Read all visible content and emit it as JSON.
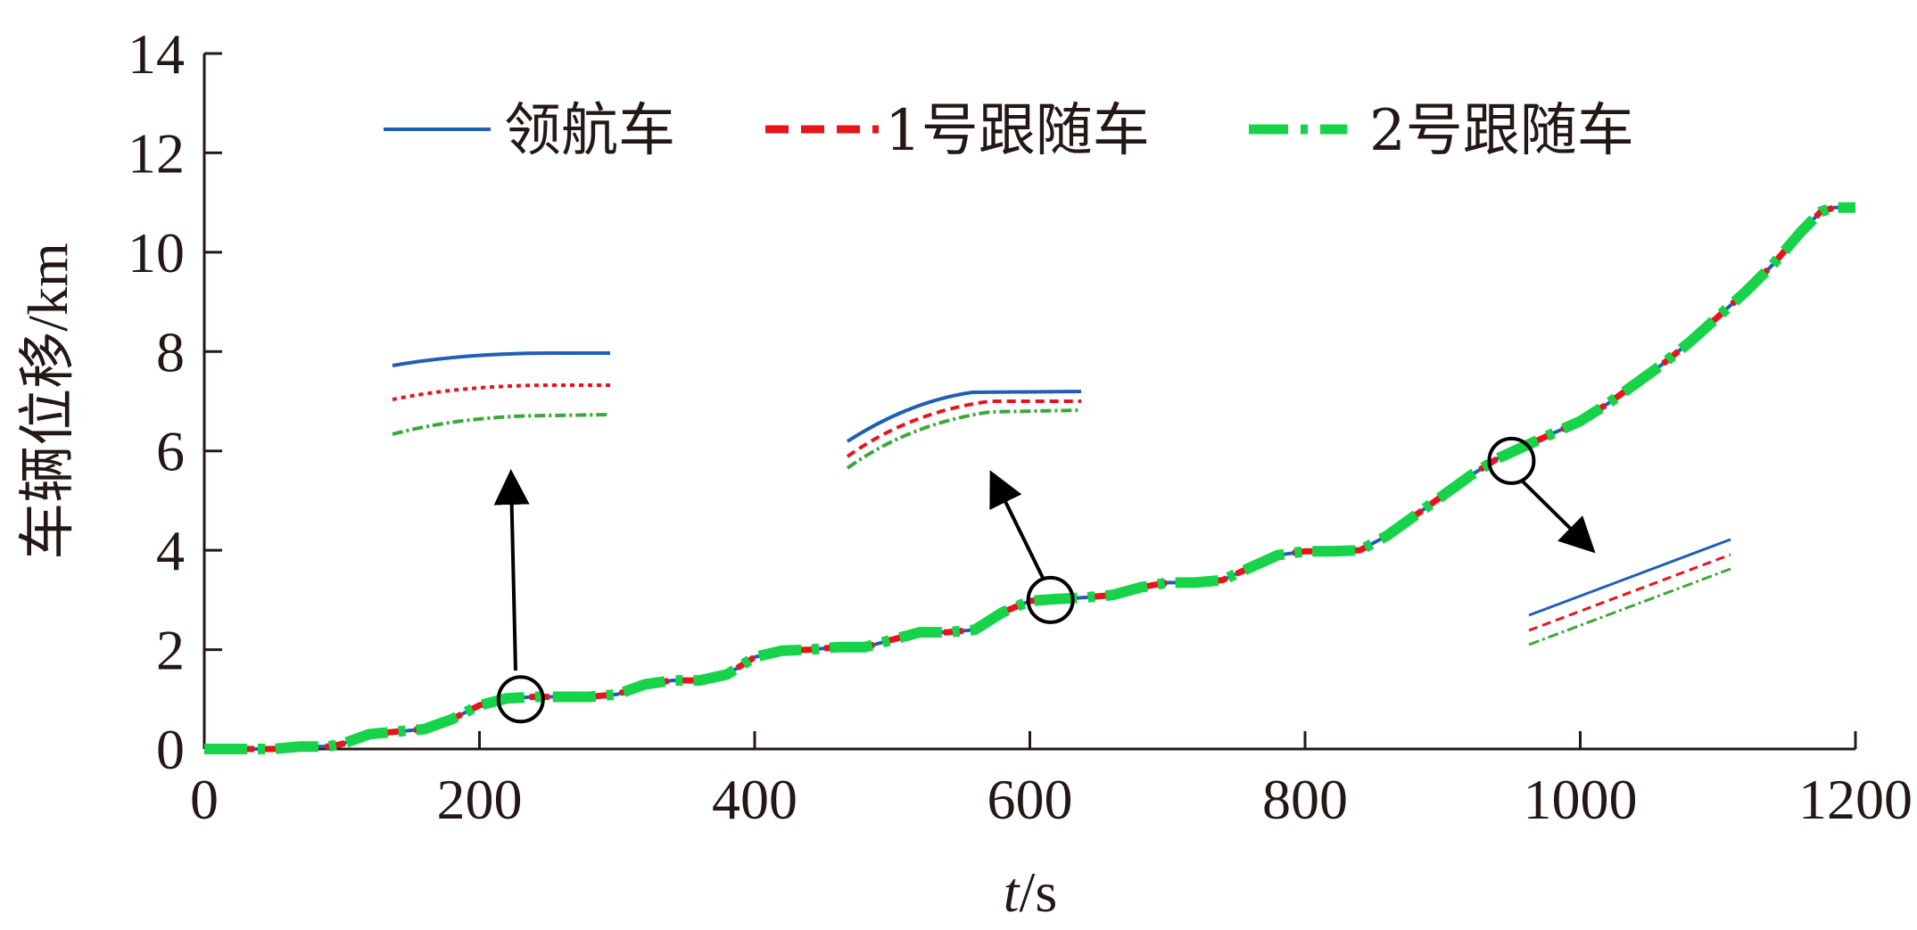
{
  "chart_data": {
    "type": "line",
    "title": "",
    "xlabel_italic": "t",
    "xlabel_unit": "/s",
    "ylabel": "车辆位移/km",
    "xlim": [
      0,
      1200
    ],
    "ylim": [
      0,
      14
    ],
    "xticks": [
      "0",
      "200",
      "400",
      "600",
      "800",
      "1000",
      "1200"
    ],
    "yticks": [
      "0",
      "2",
      "4",
      "6",
      "8",
      "10",
      "12",
      "14"
    ],
    "grid": false,
    "legend_position": "top",
    "x": [
      0,
      50,
      70,
      90,
      100,
      120,
      140,
      160,
      180,
      200,
      220,
      240,
      260,
      280,
      300,
      320,
      340,
      360,
      380,
      400,
      420,
      440,
      460,
      480,
      500,
      520,
      540,
      560,
      580,
      600,
      620,
      640,
      660,
      680,
      700,
      720,
      740,
      760,
      780,
      800,
      820,
      840,
      860,
      880,
      900,
      920,
      940,
      960,
      980,
      1000,
      1020,
      1040,
      1060,
      1080,
      1100,
      1120,
      1140,
      1160,
      1175,
      1185,
      1200
    ],
    "series": [
      {
        "name": "领航车",
        "color": "#1f5fb4",
        "style": "solid",
        "values": [
          0.0,
          0.0,
          0.05,
          0.05,
          0.1,
          0.3,
          0.35,
          0.4,
          0.6,
          0.88,
          1.02,
          1.05,
          1.05,
          1.05,
          1.1,
          1.3,
          1.38,
          1.38,
          1.5,
          1.85,
          1.98,
          2.0,
          2.05,
          2.05,
          2.2,
          2.35,
          2.35,
          2.4,
          2.75,
          2.98,
          3.02,
          3.05,
          3.1,
          3.25,
          3.35,
          3.35,
          3.4,
          3.65,
          3.9,
          3.98,
          3.98,
          4.0,
          4.3,
          4.7,
          5.1,
          5.5,
          5.85,
          6.1,
          6.35,
          6.6,
          6.95,
          7.35,
          7.75,
          8.2,
          8.7,
          9.2,
          9.75,
          10.4,
          10.82,
          10.9,
          10.9
        ]
      },
      {
        "name": "1号跟随车",
        "color": "#e8141a",
        "style": "dashed",
        "values": [
          0.0,
          0.0,
          0.05,
          0.05,
          0.1,
          0.3,
          0.35,
          0.4,
          0.6,
          0.88,
          1.02,
          1.05,
          1.05,
          1.05,
          1.1,
          1.3,
          1.38,
          1.38,
          1.5,
          1.85,
          1.98,
          2.0,
          2.05,
          2.05,
          2.2,
          2.35,
          2.35,
          2.4,
          2.75,
          2.98,
          3.02,
          3.05,
          3.1,
          3.25,
          3.35,
          3.35,
          3.4,
          3.65,
          3.9,
          3.98,
          3.98,
          4.0,
          4.3,
          4.7,
          5.1,
          5.5,
          5.85,
          6.1,
          6.35,
          6.6,
          6.95,
          7.35,
          7.75,
          8.2,
          8.7,
          9.2,
          9.75,
          10.4,
          10.82,
          10.9,
          10.9
        ]
      },
      {
        "name": "2号跟随车",
        "color": "#16d34a",
        "style": "dashdot",
        "values": [
          0.0,
          0.0,
          0.05,
          0.05,
          0.1,
          0.3,
          0.35,
          0.4,
          0.6,
          0.88,
          1.02,
          1.05,
          1.05,
          1.05,
          1.1,
          1.3,
          1.38,
          1.38,
          1.5,
          1.85,
          1.98,
          2.0,
          2.05,
          2.05,
          2.2,
          2.35,
          2.35,
          2.4,
          2.75,
          2.98,
          3.02,
          3.05,
          3.1,
          3.25,
          3.35,
          3.35,
          3.4,
          3.65,
          3.9,
          3.98,
          3.98,
          4.0,
          4.3,
          4.7,
          5.1,
          5.5,
          5.85,
          6.1,
          6.35,
          6.6,
          6.95,
          7.35,
          7.75,
          8.2,
          8.7,
          9.2,
          9.75,
          10.4,
          10.82,
          10.9,
          10.9
        ]
      }
    ],
    "zoom_regions": [
      {
        "circle_at": [
          230,
          1.0
        ],
        "inset_shape": "flat"
      },
      {
        "circle_at": [
          615,
          3.0
        ],
        "inset_shape": "curve"
      },
      {
        "circle_at": [
          950,
          5.8
        ],
        "inset_shape": "linear"
      }
    ]
  }
}
